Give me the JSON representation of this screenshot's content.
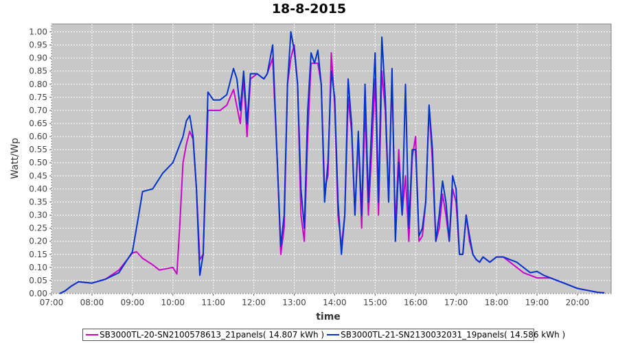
{
  "chart_data": {
    "type": "line",
    "title": "18-8-2015",
    "xlabel": "time",
    "ylabel": "Watt/Wp",
    "xlim": [
      "07:00",
      "20:50"
    ],
    "ylim": [
      0,
      1.03
    ],
    "x_ticks": [
      "07:00",
      "08:00",
      "09:00",
      "10:00",
      "11:00",
      "12:00",
      "13:00",
      "14:00",
      "15:00",
      "16:00",
      "17:00",
      "18:00",
      "19:00",
      "20:00"
    ],
    "y_ticks": [
      "0.00",
      "0.05",
      "0.10",
      "0.15",
      "0.20",
      "0.25",
      "0.30",
      "0.35",
      "0.40",
      "0.45",
      "0.50",
      "0.55",
      "0.60",
      "0.65",
      "0.70",
      "0.75",
      "0.80",
      "0.85",
      "0.90",
      "0.95",
      "1.00"
    ],
    "grid": true,
    "legend_position": "bottom",
    "background": "#c8c8c8",
    "series": [
      {
        "name": "SB3000TL-20-SN2100578613_21panels( 14.807 kWh )",
        "color": "#cc00cc",
        "points": [
          [
            "07:12",
            0.0
          ],
          [
            "07:20",
            0.01
          ],
          [
            "07:30",
            0.03
          ],
          [
            "07:40",
            0.045
          ],
          [
            "08:00",
            0.04
          ],
          [
            "08:20",
            0.055
          ],
          [
            "08:40",
            0.09
          ],
          [
            "09:00",
            0.155
          ],
          [
            "09:06",
            0.16
          ],
          [
            "09:15",
            0.135
          ],
          [
            "09:30",
            0.11
          ],
          [
            "09:40",
            0.09
          ],
          [
            "10:00",
            0.1
          ],
          [
            "10:06",
            0.075
          ],
          [
            "10:10",
            0.25
          ],
          [
            "10:15",
            0.5
          ],
          [
            "10:20",
            0.57
          ],
          [
            "10:25",
            0.62
          ],
          [
            "10:30",
            0.59
          ],
          [
            "10:35",
            0.4
          ],
          [
            "10:40",
            0.13
          ],
          [
            "10:45",
            0.15
          ],
          [
            "10:52",
            0.7
          ],
          [
            "11:00",
            0.7
          ],
          [
            "11:10",
            0.7
          ],
          [
            "11:20",
            0.72
          ],
          [
            "11:30",
            0.78
          ],
          [
            "11:40",
            0.65
          ],
          [
            "11:45",
            0.82
          ],
          [
            "11:50",
            0.6
          ],
          [
            "11:55",
            0.82
          ],
          [
            "12:05",
            0.84
          ],
          [
            "12:15",
            0.82
          ],
          [
            "12:20",
            0.84
          ],
          [
            "12:28",
            0.9
          ],
          [
            "12:35",
            0.5
          ],
          [
            "12:40",
            0.15
          ],
          [
            "12:45",
            0.25
          ],
          [
            "12:50",
            0.8
          ],
          [
            "12:55",
            0.9
          ],
          [
            "13:00",
            0.95
          ],
          [
            "13:05",
            0.8
          ],
          [
            "13:10",
            0.3
          ],
          [
            "13:15",
            0.2
          ],
          [
            "13:20",
            0.6
          ],
          [
            "13:25",
            0.88
          ],
          [
            "13:35",
            0.88
          ],
          [
            "13:40",
            0.8
          ],
          [
            "13:45",
            0.4
          ],
          [
            "13:50",
            0.45
          ],
          [
            "13:55",
            0.92
          ],
          [
            "14:00",
            0.72
          ],
          [
            "14:05",
            0.3
          ],
          [
            "14:10",
            0.18
          ],
          [
            "14:15",
            0.3
          ],
          [
            "14:20",
            0.75
          ],
          [
            "14:25",
            0.62
          ],
          [
            "14:30",
            0.3
          ],
          [
            "14:35",
            0.6
          ],
          [
            "14:40",
            0.25
          ],
          [
            "14:45",
            0.72
          ],
          [
            "14:50",
            0.3
          ],
          [
            "14:55",
            0.55
          ],
          [
            "15:00",
            0.82
          ],
          [
            "15:05",
            0.3
          ],
          [
            "15:10",
            0.85
          ],
          [
            "15:15",
            0.7
          ],
          [
            "15:20",
            0.35
          ],
          [
            "15:25",
            0.82
          ],
          [
            "15:30",
            0.25
          ],
          [
            "15:35",
            0.55
          ],
          [
            "15:40",
            0.3
          ],
          [
            "15:45",
            0.45
          ],
          [
            "15:50",
            0.2
          ],
          [
            "15:55",
            0.52
          ],
          [
            "16:00",
            0.6
          ],
          [
            "16:05",
            0.2
          ],
          [
            "16:10",
            0.22
          ],
          [
            "16:15",
            0.35
          ],
          [
            "16:20",
            0.72
          ],
          [
            "16:25",
            0.5
          ],
          [
            "16:30",
            0.2
          ],
          [
            "16:35",
            0.25
          ],
          [
            "16:40",
            0.38
          ],
          [
            "16:45",
            0.3
          ],
          [
            "16:50",
            0.2
          ],
          [
            "16:55",
            0.4
          ],
          [
            "17:00",
            0.35
          ],
          [
            "17:05",
            0.15
          ],
          [
            "17:10",
            0.15
          ],
          [
            "17:15",
            0.3
          ],
          [
            "17:20",
            0.2
          ],
          [
            "17:25",
            0.15
          ],
          [
            "17:30",
            0.13
          ],
          [
            "17:35",
            0.12
          ],
          [
            "17:40",
            0.14
          ],
          [
            "17:50",
            0.12
          ],
          [
            "18:00",
            0.14
          ],
          [
            "18:10",
            0.14
          ],
          [
            "18:20",
            0.12
          ],
          [
            "18:30",
            0.1
          ],
          [
            "18:40",
            0.08
          ],
          [
            "18:50",
            0.07
          ],
          [
            "19:00",
            0.06
          ],
          [
            "19:10",
            0.06
          ],
          [
            "19:20",
            0.06
          ],
          [
            "19:30",
            0.05
          ],
          [
            "19:40",
            0.04
          ],
          [
            "19:50",
            0.03
          ],
          [
            "20:00",
            0.02
          ],
          [
            "20:10",
            0.015
          ],
          [
            "20:20",
            0.01
          ],
          [
            "20:30",
            0.005
          ],
          [
            "20:40",
            0.003
          ]
        ]
      },
      {
        "name": "SB3000TL-21-SN2130032031_19panels( 14.586 kWh )",
        "color": "#0033cc",
        "points": [
          [
            "07:12",
            0.0
          ],
          [
            "07:20",
            0.01
          ],
          [
            "07:30",
            0.03
          ],
          [
            "07:40",
            0.045
          ],
          [
            "08:00",
            0.04
          ],
          [
            "08:20",
            0.055
          ],
          [
            "08:40",
            0.08
          ],
          [
            "09:00",
            0.16
          ],
          [
            "09:08",
            0.28
          ],
          [
            "09:15",
            0.39
          ],
          [
            "09:30",
            0.4
          ],
          [
            "09:45",
            0.46
          ],
          [
            "10:00",
            0.5
          ],
          [
            "10:15",
            0.6
          ],
          [
            "10:20",
            0.66
          ],
          [
            "10:25",
            0.68
          ],
          [
            "10:30",
            0.6
          ],
          [
            "10:35",
            0.4
          ],
          [
            "10:40",
            0.07
          ],
          [
            "10:45",
            0.15
          ],
          [
            "10:52",
            0.77
          ],
          [
            "11:00",
            0.74
          ],
          [
            "11:10",
            0.74
          ],
          [
            "11:20",
            0.76
          ],
          [
            "11:30",
            0.86
          ],
          [
            "11:35",
            0.82
          ],
          [
            "11:40",
            0.7
          ],
          [
            "11:45",
            0.85
          ],
          [
            "11:50",
            0.65
          ],
          [
            "11:55",
            0.84
          ],
          [
            "12:05",
            0.84
          ],
          [
            "12:15",
            0.82
          ],
          [
            "12:20",
            0.84
          ],
          [
            "12:28",
            0.95
          ],
          [
            "12:35",
            0.5
          ],
          [
            "12:40",
            0.18
          ],
          [
            "12:45",
            0.3
          ],
          [
            "12:50",
            0.8
          ],
          [
            "12:55",
            1.0
          ],
          [
            "13:00",
            0.93
          ],
          [
            "13:05",
            0.8
          ],
          [
            "13:10",
            0.4
          ],
          [
            "13:15",
            0.25
          ],
          [
            "13:20",
            0.7
          ],
          [
            "13:25",
            0.92
          ],
          [
            "13:30",
            0.88
          ],
          [
            "13:35",
            0.93
          ],
          [
            "13:40",
            0.8
          ],
          [
            "13:45",
            0.35
          ],
          [
            "13:50",
            0.5
          ],
          [
            "13:55",
            0.85
          ],
          [
            "14:00",
            0.75
          ],
          [
            "14:05",
            0.35
          ],
          [
            "14:10",
            0.15
          ],
          [
            "14:15",
            0.3
          ],
          [
            "14:20",
            0.82
          ],
          [
            "14:25",
            0.65
          ],
          [
            "14:30",
            0.3
          ],
          [
            "14:35",
            0.62
          ],
          [
            "14:40",
            0.3
          ],
          [
            "14:45",
            0.8
          ],
          [
            "14:50",
            0.35
          ],
          [
            "14:55",
            0.65
          ],
          [
            "15:00",
            0.92
          ],
          [
            "15:05",
            0.35
          ],
          [
            "15:10",
            0.98
          ],
          [
            "15:15",
            0.75
          ],
          [
            "15:20",
            0.35
          ],
          [
            "15:25",
            0.86
          ],
          [
            "15:30",
            0.2
          ],
          [
            "15:35",
            0.5
          ],
          [
            "15:40",
            0.3
          ],
          [
            "15:45",
            0.8
          ],
          [
            "15:50",
            0.25
          ],
          [
            "15:55",
            0.55
          ],
          [
            "16:00",
            0.55
          ],
          [
            "16:05",
            0.22
          ],
          [
            "16:10",
            0.25
          ],
          [
            "16:15",
            0.35
          ],
          [
            "16:20",
            0.72
          ],
          [
            "16:25",
            0.55
          ],
          [
            "16:30",
            0.2
          ],
          [
            "16:35",
            0.3
          ],
          [
            "16:40",
            0.43
          ],
          [
            "16:45",
            0.35
          ],
          [
            "16:50",
            0.2
          ],
          [
            "16:55",
            0.45
          ],
          [
            "17:00",
            0.4
          ],
          [
            "17:05",
            0.15
          ],
          [
            "17:10",
            0.15
          ],
          [
            "17:15",
            0.3
          ],
          [
            "17:20",
            0.22
          ],
          [
            "17:25",
            0.15
          ],
          [
            "17:30",
            0.13
          ],
          [
            "17:35",
            0.12
          ],
          [
            "17:40",
            0.14
          ],
          [
            "17:50",
            0.12
          ],
          [
            "18:00",
            0.14
          ],
          [
            "18:10",
            0.14
          ],
          [
            "18:20",
            0.13
          ],
          [
            "18:30",
            0.12
          ],
          [
            "18:40",
            0.1
          ],
          [
            "18:50",
            0.08
          ],
          [
            "19:00",
            0.085
          ],
          [
            "19:10",
            0.07
          ],
          [
            "19:20",
            0.06
          ],
          [
            "19:30",
            0.05
          ],
          [
            "19:40",
            0.04
          ],
          [
            "19:50",
            0.03
          ],
          [
            "20:00",
            0.02
          ],
          [
            "20:10",
            0.015
          ],
          [
            "20:20",
            0.01
          ],
          [
            "20:30",
            0.005
          ],
          [
            "20:40",
            0.003
          ]
        ]
      }
    ]
  }
}
